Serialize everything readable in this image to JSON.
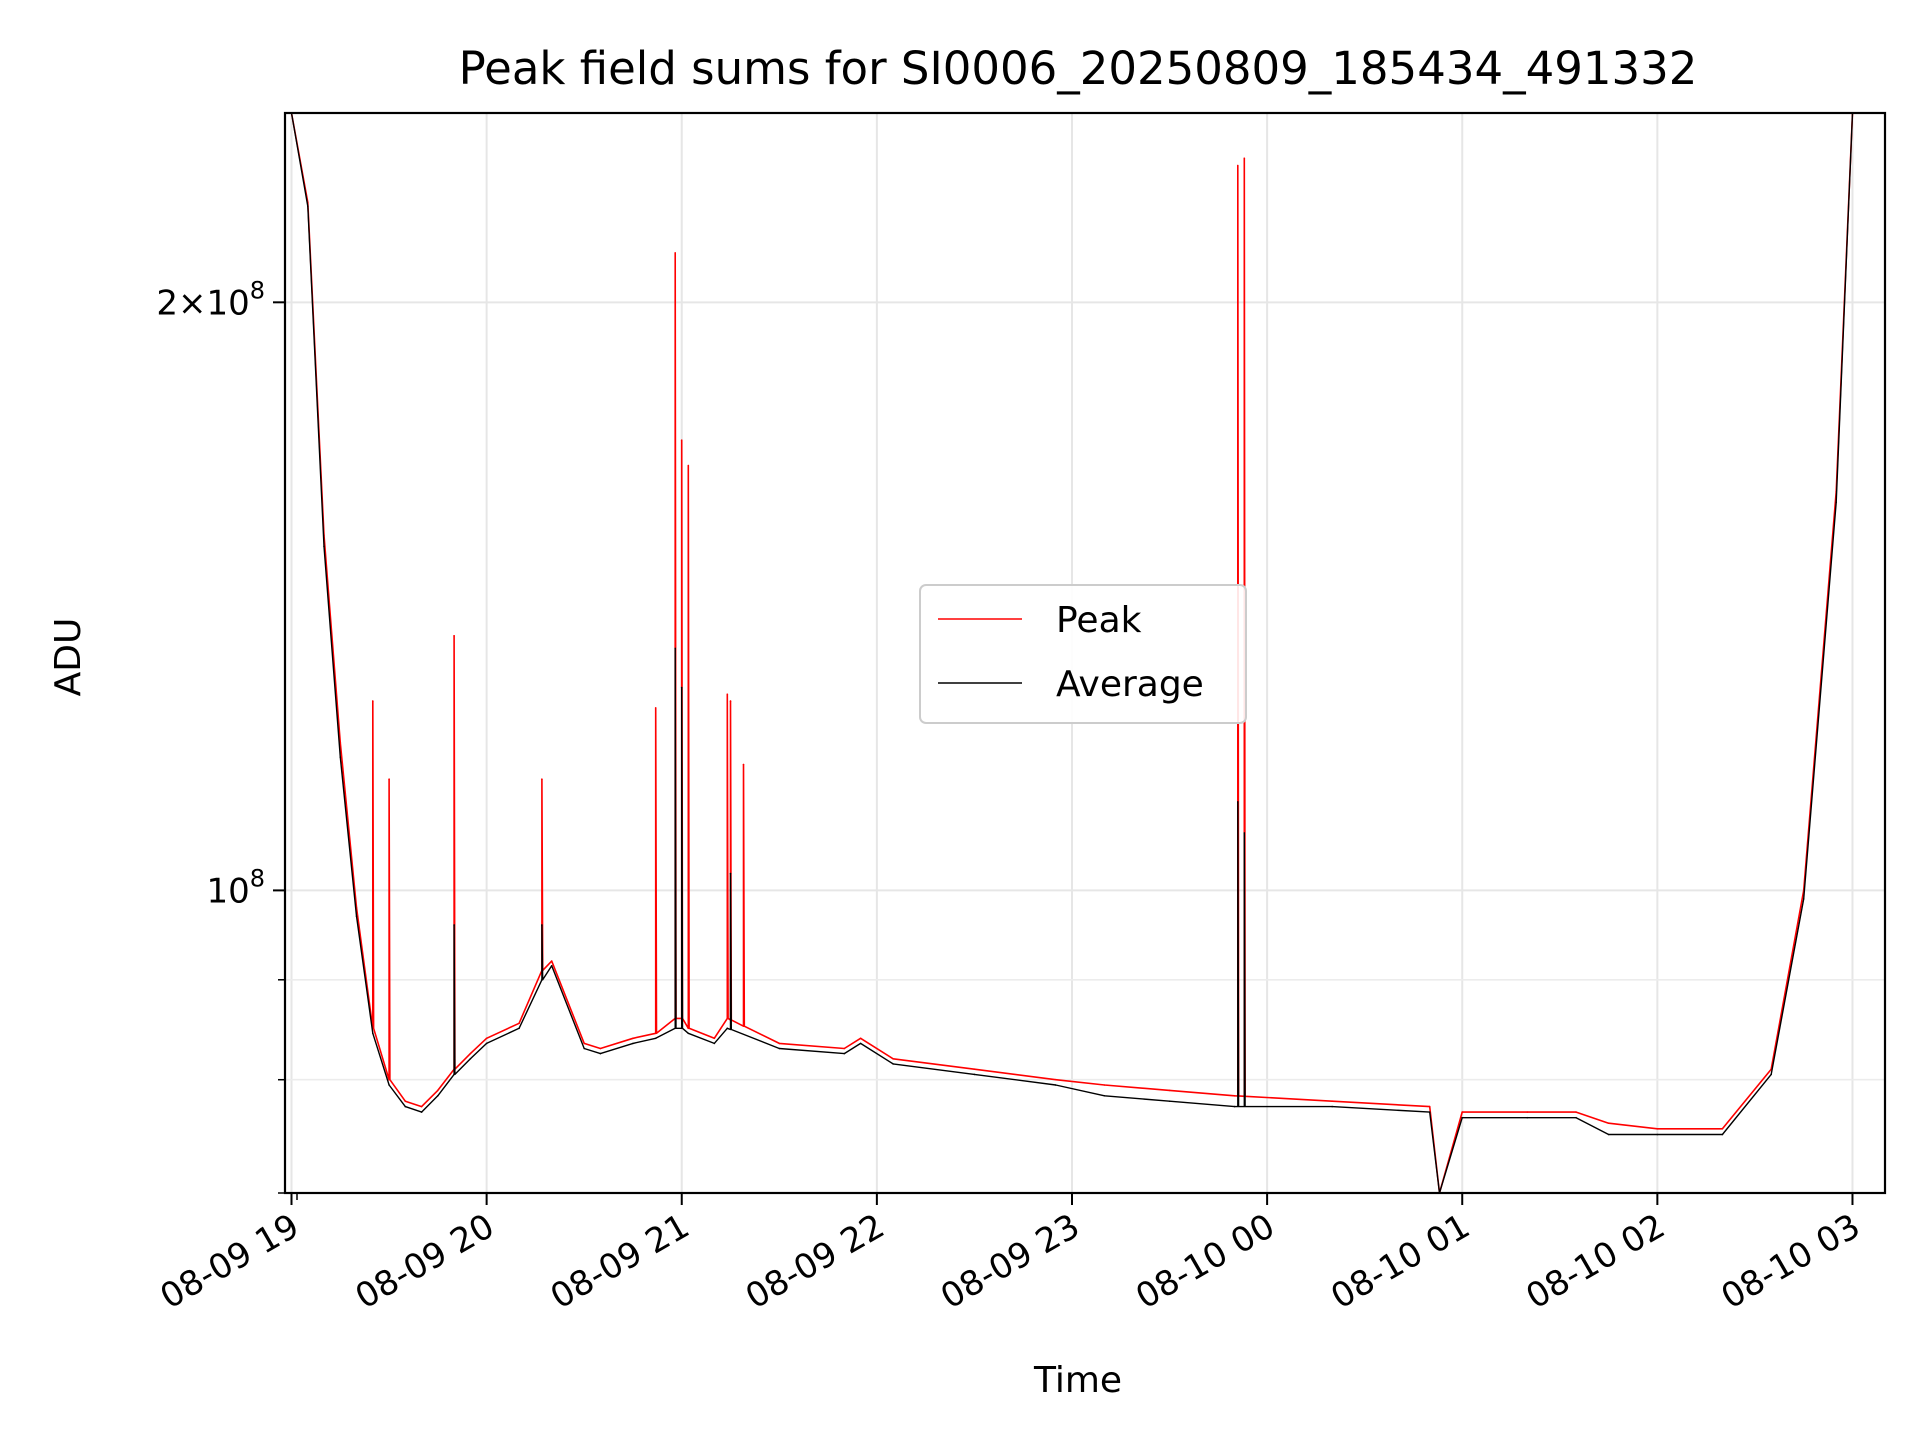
{
  "chart_data": {
    "type": "line",
    "title": "Peak field sums for SI0006_20250809_185434_491332",
    "xlabel": "Time",
    "ylabel": "ADU",
    "x_tick_labels": [
      "08-09 19",
      "08-09 20",
      "08-09 21",
      "08-09 22",
      "08-09 23",
      "08-10 00",
      "08-10 01",
      "08-10 02",
      "08-10 03"
    ],
    "y_tick_labels": [
      {
        "value": 100000000,
        "base": "10",
        "exp": "8",
        "mantissa": ""
      },
      {
        "value": 200000000,
        "base": "10",
        "exp": "8",
        "mantissa": "2×"
      }
    ],
    "y_scale": "log",
    "ylim": [
      70000000,
      250000000
    ],
    "xlim": [
      "2025-08-09 18:58",
      "2025-08-10 03:10"
    ],
    "grid": true,
    "legend_position": "center",
    "series": [
      {
        "name": "Peak",
        "color": "#ff0000",
        "x": [
          "2025-08-09 19:00",
          "2025-08-09 19:05",
          "2025-08-09 19:10",
          "2025-08-09 19:15",
          "2025-08-09 19:20",
          "2025-08-09 19:25",
          "2025-08-09 19:30",
          "2025-08-09 19:35",
          "2025-08-09 19:40",
          "2025-08-09 19:45",
          "2025-08-09 19:50",
          "2025-08-09 19:55",
          "2025-08-09 20:00",
          "2025-08-09 20:10",
          "2025-08-09 20:17",
          "2025-08-09 20:20",
          "2025-08-09 20:30",
          "2025-08-09 20:35",
          "2025-08-09 20:45",
          "2025-08-09 20:52",
          "2025-08-09 20:58",
          "2025-08-09 21:00",
          "2025-08-09 21:02",
          "2025-08-09 21:10",
          "2025-08-09 21:14",
          "2025-08-09 21:30",
          "2025-08-09 21:50",
          "2025-08-09 21:55",
          "2025-08-09 22:05",
          "2025-08-09 22:30",
          "2025-08-09 22:55",
          "2025-08-09 23:10",
          "2025-08-09 23:30",
          "2025-08-09 23:50",
          "2025-08-10 00:20",
          "2025-08-10 00:50",
          "2025-08-10 00:53",
          "2025-08-10 01:00",
          "2025-08-10 01:20",
          "2025-08-10 01:35",
          "2025-08-10 01:45",
          "2025-08-10 02:00",
          "2025-08-10 02:20",
          "2025-08-10 02:35",
          "2025-08-10 02:45",
          "2025-08-10 02:55",
          "2025-08-10 03:00"
        ],
        "values": [
          250000000,
          225000000,
          152000000,
          119000000,
          98000000,
          85000000,
          80000000,
          78000000,
          77500000,
          79000000,
          81000000,
          82500000,
          84000000,
          85500000,
          91000000,
          92000000,
          83500000,
          83000000,
          84000000,
          84500000,
          86000000,
          86000000,
          85000000,
          84000000,
          86000000,
          83500000,
          83000000,
          84000000,
          82000000,
          81000000,
          80000000,
          79500000,
          79000000,
          78500000,
          78000000,
          77500000,
          70000000,
          77000000,
          77000000,
          77000000,
          76000000,
          75500000,
          75500000,
          81000000,
          100000000,
          160000000,
          250000000
        ],
        "spikes": [
          {
            "x": "2025-08-09 19:25",
            "value": 125000000
          },
          {
            "x": "2025-08-09 19:30",
            "value": 114000000
          },
          {
            "x": "2025-08-09 19:50",
            "value": 135000000
          },
          {
            "x": "2025-08-09 20:17",
            "value": 114000000
          },
          {
            "x": "2025-08-09 20:52",
            "value": 124000000
          },
          {
            "x": "2025-08-09 20:58",
            "value": 212000000
          },
          {
            "x": "2025-08-09 21:00",
            "value": 170000000
          },
          {
            "x": "2025-08-09 21:02",
            "value": 165000000
          },
          {
            "x": "2025-08-09 21:14",
            "value": 126000000
          },
          {
            "x": "2025-08-09 21:15",
            "value": 125000000
          },
          {
            "x": "2025-08-09 21:19",
            "value": 116000000
          },
          {
            "x": "2025-08-09 23:51",
            "value": 235000000
          },
          {
            "x": "2025-08-09 23:53",
            "value": 237000000
          }
        ]
      },
      {
        "name": "Average",
        "color": "#000000",
        "x": [
          "2025-08-09 19:00",
          "2025-08-09 19:05",
          "2025-08-09 19:10",
          "2025-08-09 19:15",
          "2025-08-09 19:20",
          "2025-08-09 19:25",
          "2025-08-09 19:30",
          "2025-08-09 19:35",
          "2025-08-09 19:40",
          "2025-08-09 19:45",
          "2025-08-09 19:50",
          "2025-08-09 19:55",
          "2025-08-09 20:00",
          "2025-08-09 20:10",
          "2025-08-09 20:17",
          "2025-08-09 20:20",
          "2025-08-09 20:30",
          "2025-08-09 20:35",
          "2025-08-09 20:45",
          "2025-08-09 20:52",
          "2025-08-09 20:58",
          "2025-08-09 21:00",
          "2025-08-09 21:02",
          "2025-08-09 21:10",
          "2025-08-09 21:14",
          "2025-08-09 21:30",
          "2025-08-09 21:50",
          "2025-08-09 21:55",
          "2025-08-09 22:05",
          "2025-08-09 22:30",
          "2025-08-09 22:55",
          "2025-08-09 23:10",
          "2025-08-09 23:30",
          "2025-08-09 23:50",
          "2025-08-10 00:20",
          "2025-08-10 00:50",
          "2025-08-10 00:53",
          "2025-08-10 01:00",
          "2025-08-10 01:20",
          "2025-08-10 01:35",
          "2025-08-10 01:45",
          "2025-08-10 02:00",
          "2025-08-10 02:20",
          "2025-08-10 02:35",
          "2025-08-10 02:45",
          "2025-08-10 02:55",
          "2025-08-10 03:00"
        ],
        "values": [
          250000000,
          224000000,
          150000000,
          117000000,
          97000000,
          84500000,
          79500000,
          77500000,
          77000000,
          78500000,
          80500000,
          82000000,
          83500000,
          85000000,
          90000000,
          91500000,
          83000000,
          82500000,
          83500000,
          84000000,
          85000000,
          85000000,
          84500000,
          83500000,
          85000000,
          83000000,
          82500000,
          83500000,
          81500000,
          80500000,
          79500000,
          78500000,
          78000000,
          77500000,
          77500000,
          77000000,
          70000000,
          76500000,
          76500000,
          76500000,
          75000000,
          75000000,
          75000000,
          80500000,
          99000000,
          158000000,
          250000000
        ],
        "spikes": [
          {
            "x": "2025-08-09 19:50",
            "value": 96000000
          },
          {
            "x": "2025-08-09 20:17",
            "value": 96000000
          },
          {
            "x": "2025-08-09 20:58",
            "value": 133000000
          },
          {
            "x": "2025-08-09 21:00",
            "value": 127000000
          },
          {
            "x": "2025-08-09 21:15",
            "value": 102000000
          },
          {
            "x": "2025-08-09 23:51",
            "value": 111000000
          },
          {
            "x": "2025-08-09 23:53",
            "value": 107000000
          }
        ]
      }
    ]
  }
}
